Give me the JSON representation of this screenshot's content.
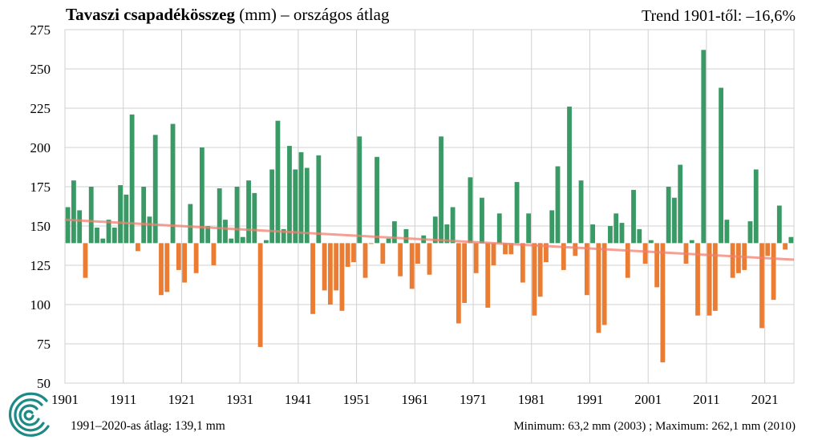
{
  "header": {
    "title_bold": "Tavaszi csapadékösszeg",
    "title_rest": " (mm) – országos  átlag",
    "trend": "Trend 1901-től: –16,6%"
  },
  "footer": {
    "average": "1991–2020-as átlag:  139,1 mm",
    "extremes": "Minimum:  63,2 mm (2003) ; Maximum:  262,1 mm (2010)"
  },
  "logo": {
    "name": "omsz-logo"
  },
  "colors": {
    "above": "#3a9a66",
    "below": "#ea7d33",
    "trend": "#f08070",
    "grid": "#d0d0d0"
  },
  "chart_data": {
    "type": "bar",
    "baseline": 139.1,
    "ylim": [
      50,
      275
    ],
    "yticks": [
      50,
      75,
      100,
      125,
      150,
      175,
      200,
      225,
      250,
      275
    ],
    "xticks": [
      1901,
      1911,
      1921,
      1931,
      1941,
      1951,
      1961,
      1971,
      1981,
      1991,
      2001,
      2011,
      2021
    ],
    "x_start": 1901,
    "grid": true,
    "trend": {
      "start": 154,
      "end": 128.6
    },
    "values": [
      162,
      179,
      160,
      117,
      175,
      149,
      142,
      154,
      149,
      176,
      170,
      221,
      134,
      175,
      156,
      208,
      106,
      108,
      215,
      122,
      114,
      164,
      120,
      200,
      150,
      125,
      174,
      154,
      142,
      175,
      143,
      179,
      171,
      73,
      141,
      186,
      217,
      148,
      201,
      186,
      197,
      187,
      94,
      195,
      109,
      100,
      109,
      96,
      124,
      127,
      207,
      117,
      139,
      194,
      126,
      142,
      153,
      118,
      148,
      110,
      126,
      144,
      119,
      156,
      207,
      151,
      162,
      88,
      101,
      181,
      120,
      168,
      98,
      125,
      158,
      132,
      132,
      178,
      114,
      158,
      93,
      105,
      127,
      160,
      188,
      122,
      226,
      131,
      179,
      106,
      151,
      82,
      87,
      150,
      158,
      152,
      117,
      173,
      148,
      126,
      141,
      111,
      63.2,
      175,
      168,
      189,
      126,
      141,
      93,
      262.1,
      93,
      96,
      238,
      154,
      117,
      120,
      122,
      153,
      186,
      85,
      131,
      103,
      163,
      135,
      143
    ]
  }
}
